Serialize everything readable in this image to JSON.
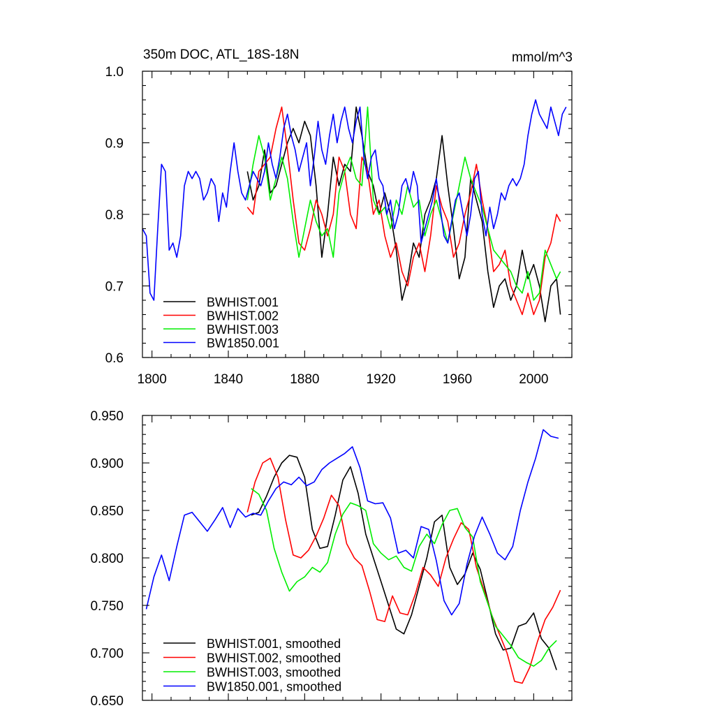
{
  "chart_data": [
    {
      "type": "line",
      "title": "350m DOC, ATL_18S-18N",
      "units": "mmol/m^3",
      "xlim": [
        1795,
        2020
      ],
      "ylim": [
        0.6,
        1.0
      ],
      "xticks": [
        1800,
        1840,
        1880,
        1920,
        1960,
        2000
      ],
      "xtick_labels": [
        "1800",
        "1840",
        "1880",
        "1920",
        "1960",
        "2000"
      ],
      "yticks": [
        0.6,
        0.7,
        0.8,
        0.9,
        1.0
      ],
      "ytick_labels": [
        "0.6",
        "0.7",
        "0.8",
        "0.9",
        "1.0"
      ],
      "legend_position": "bottom-left",
      "series": [
        {
          "name": "BWHIST.001",
          "color": "#000000",
          "x": [
            1850,
            1853,
            1856,
            1859,
            1862,
            1865,
            1868,
            1871,
            1874,
            1877,
            1880,
            1883,
            1886,
            1889,
            1892,
            1895,
            1898,
            1901,
            1904,
            1907,
            1910,
            1913,
            1916,
            1919,
            1922,
            1925,
            1928,
            1931,
            1934,
            1937,
            1940,
            1943,
            1946,
            1949,
            1952,
            1955,
            1958,
            1961,
            1964,
            1967,
            1970,
            1973,
            1976,
            1979,
            1982,
            1985,
            1988,
            1991,
            1994,
            1997,
            2000,
            2003,
            2006,
            2009,
            2012,
            2014
          ],
          "y": [
            0.86,
            0.82,
            0.84,
            0.89,
            0.83,
            0.84,
            0.87,
            0.9,
            0.92,
            0.9,
            0.93,
            0.91,
            0.84,
            0.74,
            0.8,
            0.88,
            0.84,
            0.87,
            0.86,
            0.95,
            0.91,
            0.86,
            0.84,
            0.8,
            0.83,
            0.8,
            0.75,
            0.68,
            0.71,
            0.76,
            0.74,
            0.8,
            0.82,
            0.85,
            0.91,
            0.84,
            0.78,
            0.71,
            0.74,
            0.85,
            0.82,
            0.79,
            0.72,
            0.67,
            0.7,
            0.71,
            0.68,
            0.7,
            0.75,
            0.71,
            0.73,
            0.7,
            0.65,
            0.7,
            0.71,
            0.66
          ]
        },
        {
          "name": "BWHIST.002",
          "color": "#ff0000",
          "x": [
            1850,
            1853,
            1856,
            1859,
            1862,
            1865,
            1868,
            1871,
            1874,
            1877,
            1880,
            1883,
            1886,
            1889,
            1892,
            1895,
            1898,
            1901,
            1904,
            1907,
            1910,
            1913,
            1916,
            1919,
            1922,
            1925,
            1928,
            1931,
            1934,
            1937,
            1940,
            1943,
            1946,
            1949,
            1952,
            1955,
            1958,
            1961,
            1964,
            1967,
            1970,
            1973,
            1976,
            1979,
            1982,
            1985,
            1988,
            1991,
            1994,
            1997,
            2000,
            2003,
            2006,
            2009,
            2012,
            2014
          ],
          "y": [
            0.81,
            0.8,
            0.86,
            0.87,
            0.88,
            0.92,
            0.95,
            0.89,
            0.82,
            0.76,
            0.75,
            0.78,
            0.82,
            0.8,
            0.77,
            0.8,
            0.88,
            0.86,
            0.8,
            0.78,
            0.88,
            0.86,
            0.8,
            0.82,
            0.77,
            0.74,
            0.76,
            0.72,
            0.7,
            0.74,
            0.76,
            0.72,
            0.77,
            0.84,
            0.81,
            0.79,
            0.74,
            0.76,
            0.8,
            0.83,
            0.87,
            0.82,
            0.78,
            0.72,
            0.73,
            0.75,
            0.7,
            0.68,
            0.66,
            0.69,
            0.66,
            0.68,
            0.74,
            0.76,
            0.8,
            0.79
          ]
        },
        {
          "name": "BWHIST.003",
          "color": "#00ee00",
          "x": [
            1850,
            1853,
            1856,
            1859,
            1862,
            1865,
            1868,
            1871,
            1874,
            1877,
            1880,
            1883,
            1886,
            1889,
            1892,
            1895,
            1898,
            1901,
            1904,
            1907,
            1910,
            1913,
            1916,
            1919,
            1922,
            1925,
            1928,
            1931,
            1934,
            1937,
            1940,
            1943,
            1946,
            1949,
            1952,
            1955,
            1958,
            1961,
            1964,
            1967,
            1970,
            1973,
            1976,
            1979,
            1982,
            1985,
            1988,
            1991,
            1994,
            1997,
            2000,
            2003,
            2006,
            2009,
            2012,
            2014
          ],
          "y": [
            0.82,
            0.87,
            0.91,
            0.88,
            0.82,
            0.85,
            0.88,
            0.85,
            0.79,
            0.74,
            0.78,
            0.82,
            0.79,
            0.77,
            0.78,
            0.74,
            0.83,
            0.86,
            0.88,
            0.85,
            0.84,
            0.95,
            0.82,
            0.8,
            0.81,
            0.78,
            0.82,
            0.8,
            0.84,
            0.81,
            0.82,
            0.77,
            0.8,
            0.82,
            0.79,
            0.76,
            0.8,
            0.84,
            0.88,
            0.85,
            0.83,
            0.81,
            0.78,
            0.75,
            0.74,
            0.73,
            0.72,
            0.7,
            0.69,
            0.72,
            0.68,
            0.69,
            0.75,
            0.73,
            0.71,
            0.72
          ]
        },
        {
          "name": "BW1850.001",
          "color": "#0000ff",
          "x": [
            1795,
            1797,
            1799,
            1801,
            1803,
            1805,
            1807,
            1809,
            1811,
            1813,
            1815,
            1817,
            1819,
            1821,
            1823,
            1825,
            1827,
            1829,
            1831,
            1833,
            1835,
            1837,
            1839,
            1841,
            1843,
            1845,
            1847,
            1849,
            1851,
            1853,
            1855,
            1857,
            1859,
            1861,
            1863,
            1865,
            1867,
            1869,
            1871,
            1873,
            1875,
            1877,
            1879,
            1881,
            1883,
            1885,
            1887,
            1889,
            1891,
            1893,
            1895,
            1897,
            1899,
            1901,
            1903,
            1905,
            1907,
            1909,
            1911,
            1913,
            1915,
            1917,
            1919,
            1921,
            1923,
            1925,
            1927,
            1929,
            1931,
            1933,
            1935,
            1937,
            1939,
            1941,
            1943,
            1945,
            1947,
            1949,
            1951,
            1953,
            1955,
            1957,
            1959,
            1961,
            1963,
            1965,
            1967,
            1969,
            1971,
            1973,
            1975,
            1977,
            1979,
            1981,
            1983,
            1985,
            1987,
            1989,
            1991,
            1993,
            1995,
            1997,
            1999,
            2001,
            2003,
            2005,
            2007,
            2009,
            2011,
            2013,
            2015,
            2017
          ],
          "y": [
            0.78,
            0.77,
            0.69,
            0.68,
            0.78,
            0.87,
            0.86,
            0.75,
            0.76,
            0.74,
            0.77,
            0.84,
            0.86,
            0.85,
            0.86,
            0.85,
            0.82,
            0.83,
            0.85,
            0.84,
            0.79,
            0.83,
            0.81,
            0.86,
            0.9,
            0.86,
            0.83,
            0.82,
            0.84,
            0.86,
            0.85,
            0.84,
            0.86,
            0.9,
            0.87,
            0.85,
            0.88,
            0.92,
            0.94,
            0.91,
            0.89,
            0.86,
            0.88,
            0.9,
            0.84,
            0.88,
            0.93,
            0.89,
            0.87,
            0.91,
            0.94,
            0.9,
            0.93,
            0.95,
            0.92,
            0.9,
            0.93,
            0.95,
            0.88,
            0.85,
            0.88,
            0.89,
            0.85,
            0.84,
            0.8,
            0.82,
            0.78,
            0.8,
            0.84,
            0.85,
            0.83,
            0.86,
            0.84,
            0.76,
            0.78,
            0.8,
            0.82,
            0.85,
            0.81,
            0.77,
            0.76,
            0.79,
            0.82,
            0.83,
            0.8,
            0.77,
            0.8,
            0.85,
            0.86,
            0.8,
            0.77,
            0.81,
            0.78,
            0.8,
            0.83,
            0.82,
            0.84,
            0.85,
            0.84,
            0.85,
            0.87,
            0.91,
            0.94,
            0.96,
            0.94,
            0.93,
            0.92,
            0.95,
            0.93,
            0.91,
            0.94,
            0.95
          ]
        }
      ]
    },
    {
      "type": "line",
      "title": "",
      "xlim": [
        1795,
        2020
      ],
      "ylim": [
        0.65,
        0.95
      ],
      "xticks": [
        1800,
        1840,
        1880,
        1920,
        1960,
        2000
      ],
      "yticks": [
        0.65,
        0.7,
        0.75,
        0.8,
        0.85,
        0.9,
        0.95
      ],
      "ytick_labels": [
        "0.650",
        "0.700",
        "0.750",
        "0.800",
        "0.850",
        "0.900",
        "0.950"
      ],
      "legend_position": "bottom-left",
      "series": [
        {
          "name": "BWHIST.001, smoothed",
          "color": "#000000",
          "x": [
            1852,
            1856,
            1860,
            1864,
            1868,
            1872,
            1876,
            1880,
            1884,
            1888,
            1892,
            1896,
            1900,
            1904,
            1908,
            1912,
            1916,
            1920,
            1924,
            1928,
            1932,
            1936,
            1940,
            1944,
            1948,
            1952,
            1956,
            1960,
            1964,
            1968,
            1972,
            1976,
            1980,
            1984,
            1988,
            1992,
            1996,
            2000,
            2004,
            2008,
            2012
          ],
          "y": [
            0.845,
            0.848,
            0.865,
            0.885,
            0.9,
            0.908,
            0.906,
            0.885,
            0.83,
            0.81,
            0.812,
            0.845,
            0.882,
            0.896,
            0.868,
            0.825,
            0.8,
            0.775,
            0.75,
            0.725,
            0.72,
            0.74,
            0.77,
            0.8,
            0.838,
            0.845,
            0.79,
            0.772,
            0.783,
            0.805,
            0.788,
            0.755,
            0.72,
            0.703,
            0.705,
            0.728,
            0.731,
            0.742,
            0.715,
            0.705,
            0.682
          ]
        },
        {
          "name": "BWHIST.002, smoothed",
          "color": "#ff0000",
          "x": [
            1850,
            1854,
            1858,
            1862,
            1866,
            1870,
            1874,
            1878,
            1882,
            1886,
            1890,
            1894,
            1898,
            1902,
            1906,
            1910,
            1914,
            1918,
            1922,
            1926,
            1930,
            1934,
            1938,
            1942,
            1946,
            1950,
            1954,
            1958,
            1962,
            1966,
            1970,
            1974,
            1978,
            1982,
            1986,
            1990,
            1994,
            1998,
            2002,
            2006,
            2010,
            2014
          ],
          "y": [
            0.848,
            0.88,
            0.9,
            0.905,
            0.885,
            0.84,
            0.803,
            0.8,
            0.808,
            0.823,
            0.842,
            0.866,
            0.855,
            0.815,
            0.8,
            0.792,
            0.765,
            0.735,
            0.733,
            0.76,
            0.742,
            0.74,
            0.762,
            0.79,
            0.782,
            0.77,
            0.8,
            0.82,
            0.837,
            0.83,
            0.79,
            0.766,
            0.74,
            0.72,
            0.7,
            0.67,
            0.668,
            0.685,
            0.712,
            0.735,
            0.748,
            0.766
          ]
        },
        {
          "name": "BWHIST.003, smoothed",
          "color": "#00ee00",
          "x": [
            1852,
            1856,
            1860,
            1864,
            1868,
            1872,
            1876,
            1880,
            1884,
            1888,
            1892,
            1896,
            1900,
            1904,
            1908,
            1912,
            1916,
            1920,
            1924,
            1928,
            1932,
            1936,
            1940,
            1944,
            1948,
            1952,
            1956,
            1960,
            1964,
            1968,
            1972,
            1976,
            1980,
            1984,
            1988,
            1992,
            1996,
            2000,
            2004,
            2008,
            2012
          ],
          "y": [
            0.873,
            0.867,
            0.85,
            0.81,
            0.785,
            0.765,
            0.775,
            0.78,
            0.79,
            0.785,
            0.795,
            0.825,
            0.846,
            0.858,
            0.855,
            0.85,
            0.815,
            0.805,
            0.798,
            0.802,
            0.79,
            0.786,
            0.812,
            0.825,
            0.815,
            0.835,
            0.85,
            0.852,
            0.832,
            0.822,
            0.775,
            0.752,
            0.728,
            0.718,
            0.708,
            0.695,
            0.69,
            0.686,
            0.692,
            0.705,
            0.713
          ]
        },
        {
          "name": "BW1850.001, smoothed",
          "color": "#0000ff",
          "x": [
            1797,
            1801,
            1805,
            1809,
            1813,
            1817,
            1821,
            1825,
            1829,
            1833,
            1837,
            1841,
            1845,
            1849,
            1853,
            1857,
            1861,
            1865,
            1869,
            1873,
            1877,
            1881,
            1885,
            1889,
            1893,
            1897,
            1901,
            1905,
            1909,
            1913,
            1917,
            1921,
            1925,
            1929,
            1933,
            1937,
            1941,
            1945,
            1949,
            1953,
            1957,
            1961,
            1965,
            1969,
            1973,
            1977,
            1981,
            1985,
            1989,
            1993,
            1997,
            2001,
            2005,
            2009,
            2013
          ],
          "y": [
            0.746,
            0.78,
            0.803,
            0.776,
            0.812,
            0.845,
            0.848,
            0.838,
            0.828,
            0.84,
            0.853,
            0.832,
            0.852,
            0.843,
            0.847,
            0.845,
            0.86,
            0.873,
            0.88,
            0.877,
            0.885,
            0.876,
            0.88,
            0.893,
            0.9,
            0.905,
            0.91,
            0.917,
            0.895,
            0.86,
            0.857,
            0.858,
            0.842,
            0.805,
            0.808,
            0.8,
            0.833,
            0.83,
            0.797,
            0.755,
            0.74,
            0.752,
            0.793,
            0.823,
            0.843,
            0.825,
            0.805,
            0.798,
            0.812,
            0.85,
            0.88,
            0.905,
            0.935,
            0.928,
            0.926
          ]
        }
      ]
    }
  ]
}
